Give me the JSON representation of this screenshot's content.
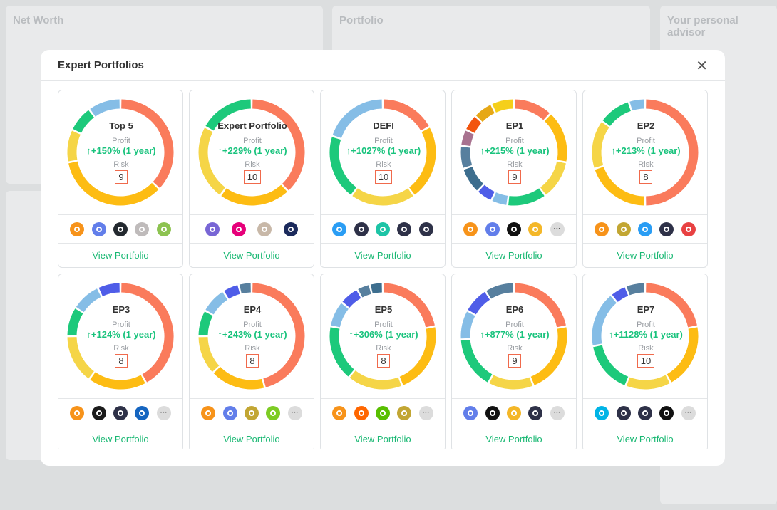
{
  "background": {
    "panels": [
      "Net Worth",
      "Portfolio",
      "Your personal advisor"
    ]
  },
  "modal": {
    "title": "Expert Portfolios",
    "profit_label": "Profit",
    "risk_label": "Risk",
    "link_label": "View Portfolio",
    "cards": [
      {
        "name": "Top 5",
        "profit": "+150% (1 year)",
        "risk": 9,
        "more_icon": false,
        "icons": [
          "#f7931a",
          "#627eea",
          "#23292f",
          "#bfbbbb",
          "#8dc351"
        ],
        "segments": [
          {
            "value": 37,
            "color": "#fa7b5c"
          },
          {
            "value": 35,
            "color": "#fdbc13"
          },
          {
            "value": 10,
            "color": "#f5d547"
          },
          {
            "value": 8,
            "color": "#1dc97b"
          },
          {
            "value": 10,
            "color": "#85bde6"
          }
        ]
      },
      {
        "name": "Expert Portfolio",
        "profit": "+229% (1 year)",
        "risk": 10,
        "more_icon": false,
        "icons": [
          "#7866d5",
          "#e6007a",
          "#c8b8a8",
          "#1b2a5c"
        ],
        "segments": [
          {
            "value": 38,
            "color": "#fa7b5c"
          },
          {
            "value": 22,
            "color": "#fdbc13"
          },
          {
            "value": 23,
            "color": "#f5d547"
          },
          {
            "value": 17,
            "color": "#1dc97b"
          }
        ]
      },
      {
        "name": "DEFI",
        "profit": "+1027% (1 year)",
        "risk": 10,
        "more_icon": false,
        "icons": [
          "#2a9df4",
          "#2e3148",
          "#1dc4a6",
          "#2e3148",
          "#2e3148"
        ],
        "segments": [
          {
            "value": 17,
            "color": "#fa7b5c"
          },
          {
            "value": 23,
            "color": "#fdbc13"
          },
          {
            "value": 20,
            "color": "#f5d547"
          },
          {
            "value": 20,
            "color": "#1dc97b"
          },
          {
            "value": 20,
            "color": "#85bde6"
          }
        ]
      },
      {
        "name": "EP1",
        "profit": "+215% (1 year)",
        "risk": 9,
        "more_icon": true,
        "icons": [
          "#f7931a",
          "#627eea",
          "#111111",
          "#f4b728"
        ],
        "segments": [
          {
            "value": 12,
            "color": "#fa7b5c"
          },
          {
            "value": 16,
            "color": "#fdbc13"
          },
          {
            "value": 12,
            "color": "#f5d547"
          },
          {
            "value": 12,
            "color": "#1dc97b"
          },
          {
            "value": 5,
            "color": "#85bde6"
          },
          {
            "value": 5,
            "color": "#4f5de8"
          },
          {
            "value": 8,
            "color": "#3d6e8e"
          },
          {
            "value": 7,
            "color": "#577f9e"
          },
          {
            "value": 5,
            "color": "#a8728f"
          },
          {
            "value": 5,
            "color": "#f2540e"
          },
          {
            "value": 6,
            "color": "#e6a817"
          },
          {
            "value": 7,
            "color": "#f5cf1a"
          }
        ]
      },
      {
        "name": "EP2",
        "profit": "+213% (1 year)",
        "risk": 8,
        "more_icon": false,
        "icons": [
          "#f7931a",
          "#c2a633",
          "#2a9df4",
          "#2e3148",
          "#e84142"
        ],
        "segments": [
          {
            "value": 50,
            "color": "#fa7b5c"
          },
          {
            "value": 20,
            "color": "#fdbc13"
          },
          {
            "value": 15,
            "color": "#f5d547"
          },
          {
            "value": 10,
            "color": "#1dc97b"
          },
          {
            "value": 5,
            "color": "#85bde6"
          }
        ]
      },
      {
        "name": "EP3",
        "profit": "+124% (1 year)",
        "risk": 8,
        "more_icon": true,
        "icons": [
          "#f7931a",
          "#1b1b1b",
          "#2e3148",
          "#1565c0"
        ],
        "segments": [
          {
            "value": 42,
            "color": "#fa7b5c"
          },
          {
            "value": 18,
            "color": "#fdbc13"
          },
          {
            "value": 15,
            "color": "#f5d547"
          },
          {
            "value": 9,
            "color": "#1dc97b"
          },
          {
            "value": 9,
            "color": "#85bde6"
          },
          {
            "value": 7,
            "color": "#4f5de8"
          }
        ]
      },
      {
        "name": "EP4",
        "profit": "+243% (1 year)",
        "risk": 8,
        "more_icon": true,
        "icons": [
          "#f7931a",
          "#627eea",
          "#c2a633",
          "#7dcc24"
        ],
        "segments": [
          {
            "value": 46,
            "color": "#fa7b5c"
          },
          {
            "value": 17,
            "color": "#fdbc13"
          },
          {
            "value": 12,
            "color": "#f5d547"
          },
          {
            "value": 8,
            "color": "#1dc97b"
          },
          {
            "value": 8,
            "color": "#85bde6"
          },
          {
            "value": 5,
            "color": "#4f5de8"
          },
          {
            "value": 4,
            "color": "#577f9e"
          }
        ]
      },
      {
        "name": "EP5",
        "profit": "+306% (1 year)",
        "risk": 8,
        "more_icon": true,
        "icons": [
          "#f7931a",
          "#ff6600",
          "#58bf00",
          "#c2a633"
        ],
        "segments": [
          {
            "value": 22,
            "color": "#fa7b5c"
          },
          {
            "value": 22,
            "color": "#fdbc13"
          },
          {
            "value": 17,
            "color": "#f5d547"
          },
          {
            "value": 17,
            "color": "#1dc97b"
          },
          {
            "value": 8,
            "color": "#85bde6"
          },
          {
            "value": 6,
            "color": "#4f5de8"
          },
          {
            "value": 4,
            "color": "#577f9e"
          },
          {
            "value": 4,
            "color": "#3d6e8e"
          }
        ]
      },
      {
        "name": "EP6",
        "profit": "+877% (1 year)",
        "risk": 9,
        "more_icon": true,
        "icons": [
          "#627eea",
          "#111111",
          "#f4b728",
          "#2e3148"
        ],
        "segments": [
          {
            "value": 22,
            "color": "#fa7b5c"
          },
          {
            "value": 22,
            "color": "#fdbc13"
          },
          {
            "value": 14,
            "color": "#f5d547"
          },
          {
            "value": 16,
            "color": "#1dc97b"
          },
          {
            "value": 9,
            "color": "#85bde6"
          },
          {
            "value": 8,
            "color": "#4f5de8"
          },
          {
            "value": 9,
            "color": "#577f9e"
          }
        ]
      },
      {
        "name": "EP7",
        "profit": "+1128% (1 year)",
        "risk": 10,
        "more_icon": true,
        "icons": [
          "#00b4e6",
          "#2e3148",
          "#2e3148",
          "#111111"
        ],
        "segments": [
          {
            "value": 22,
            "color": "#fa7b5c"
          },
          {
            "value": 20,
            "color": "#fdbc13"
          },
          {
            "value": 14,
            "color": "#f5d547"
          },
          {
            "value": 16,
            "color": "#1dc97b"
          },
          {
            "value": 17,
            "color": "#85bde6"
          },
          {
            "value": 5,
            "color": "#4f5de8"
          },
          {
            "value": 6,
            "color": "#577f9e"
          }
        ]
      }
    ]
  }
}
